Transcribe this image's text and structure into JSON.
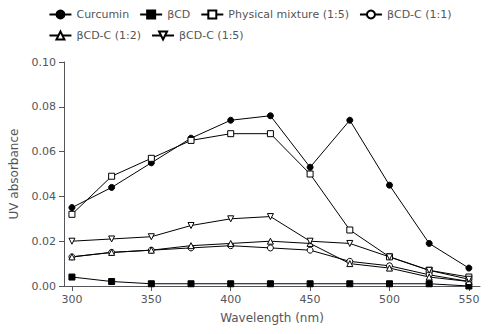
{
  "chart_data": {
    "type": "line",
    "x": [
      300,
      325,
      350,
      375,
      400,
      425,
      450,
      475,
      500,
      525,
      550
    ],
    "series": [
      {
        "name": "Curcumin",
        "color": "#000000",
        "marker": "circle",
        "values": [
          0.035,
          0.044,
          0.055,
          0.066,
          0.074,
          0.076,
          0.053,
          0.074,
          0.045,
          0.019,
          0.008
        ]
      },
      {
        "name": "βCD",
        "color": "#000000",
        "marker": "square",
        "values": [
          0.004,
          0.002,
          0.001,
          0.001,
          0.001,
          0.001,
          0.001,
          0.001,
          0.001,
          0.001,
          0.0
        ]
      },
      {
        "name": "Physical mixture (1:5)",
        "color": "#000000",
        "marker": "open-square",
        "values": [
          0.032,
          0.049,
          0.057,
          0.065,
          0.068,
          0.068,
          0.05,
          0.025,
          0.013,
          0.007,
          0.004
        ]
      },
      {
        "name": "βCD-C (1:1)",
        "color": "#000000",
        "marker": "open-circle",
        "values": [
          0.013,
          0.015,
          0.016,
          0.017,
          0.018,
          0.017,
          0.016,
          0.011,
          0.009,
          0.005,
          0.002
        ]
      },
      {
        "name": "βCD-C (1:2)",
        "color": "#000000",
        "marker": "open-triangle-up",
        "values": [
          0.013,
          0.015,
          0.016,
          0.018,
          0.019,
          0.02,
          0.019,
          0.01,
          0.008,
          0.004,
          0.002
        ]
      },
      {
        "name": "βCD-C (1:5)",
        "color": "#000000",
        "marker": "open-triangle-down",
        "values": [
          0.02,
          0.021,
          0.022,
          0.027,
          0.03,
          0.031,
          0.02,
          0.019,
          0.013,
          0.007,
          0.003
        ]
      }
    ],
    "xlabel": "Wavelength (nm)",
    "ylabel": "UV absorbance",
    "xlim": [
      295,
      557
    ],
    "ylim": [
      0.0,
      0.1
    ],
    "xticks": [
      300,
      350,
      400,
      450,
      500,
      550
    ],
    "yticks": [
      {
        "value": 0.0,
        "label": "0.00"
      },
      {
        "value": 0.02,
        "label": "0.02"
      },
      {
        "value": 0.04,
        "label": "0.04"
      },
      {
        "value": 0.06,
        "label": "0.06"
      },
      {
        "value": 0.08,
        "label": "0.08"
      },
      {
        "value": 0.1,
        "label": "0.10"
      }
    ],
    "grid": false,
    "legend": "top"
  }
}
